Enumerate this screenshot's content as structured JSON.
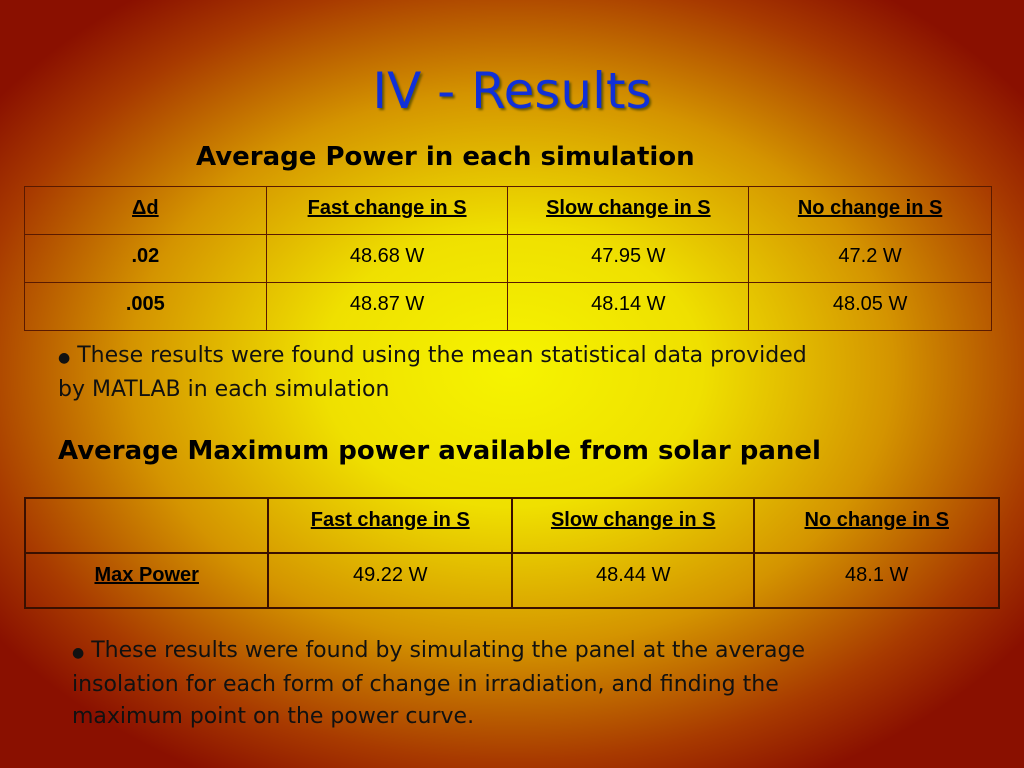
{
  "title": "IV - Results",
  "section1": {
    "heading": "Average Power in each simulation",
    "table": {
      "header": [
        "Δd",
        "Fast change in S",
        "Slow change in S",
        "No change in S"
      ],
      "rows": [
        [
          ".02",
          "48.68 W",
          "47.95 W",
          "47.2 W"
        ],
        [
          ".005",
          "48.87 W",
          "48.14 W",
          "48.05 W"
        ]
      ]
    },
    "note": {
      "lines": [
        "These results were found using the mean statistical data provided",
        "by MATLAB in each simulation"
      ]
    }
  },
  "section2": {
    "heading": "Average Maximum power available from solar panel",
    "table": {
      "header": [
        "Fast change in S",
        "Slow change in S",
        "No change in S"
      ],
      "rows": [
        [
          "Max Power",
          "49.22 W",
          "48.44 W",
          "48.1 W"
        ]
      ]
    },
    "note": {
      "lines": [
        "These results were found by simulating the panel at the average",
        "insolation for each form of change in irradiation, and finding the",
        "maximum point on the power curve."
      ]
    }
  }
}
